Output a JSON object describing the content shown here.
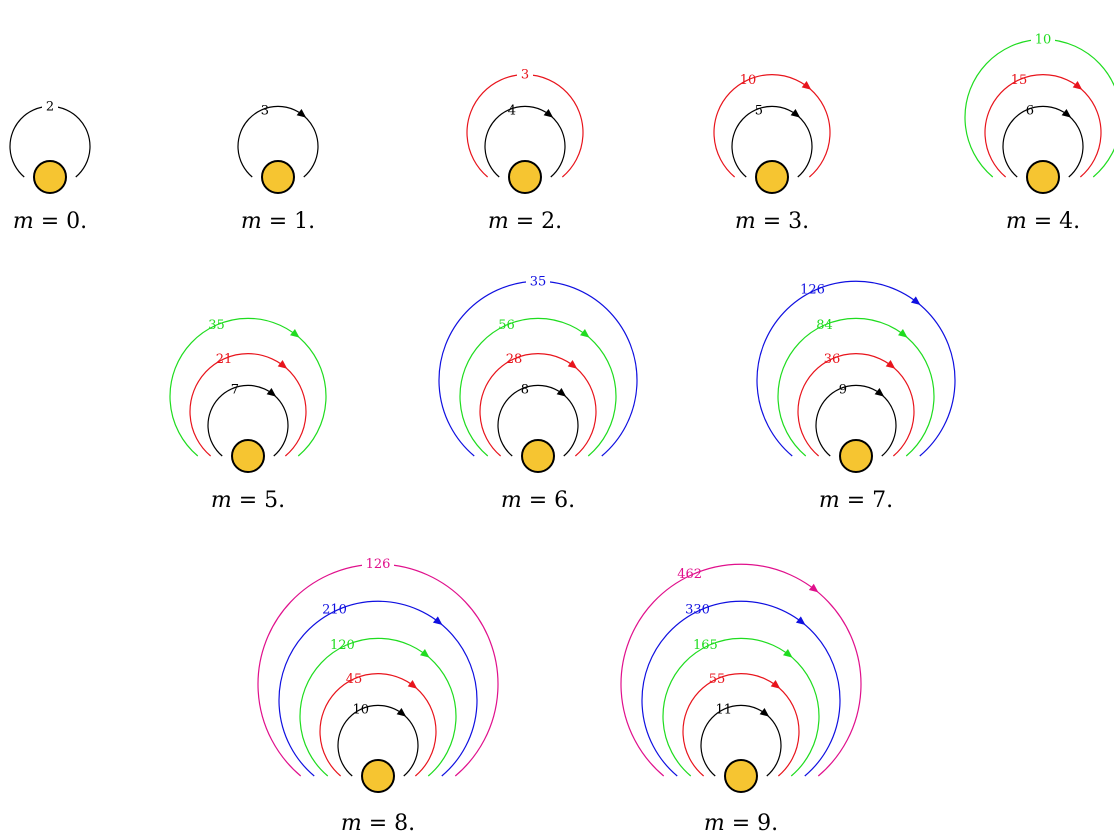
{
  "colors": {
    "black": "#000000",
    "red": "#e8141c",
    "green": "#1fdc1f",
    "blue": "#1010e0",
    "magenta": "#e0108c",
    "vertex": "#f6c531"
  },
  "caption_var": "m",
  "caption_eq": " = ",
  "diagrams": [
    {
      "m": "0",
      "loops": [
        {
          "label": "2",
          "color": "black",
          "arrow": false
        }
      ]
    },
    {
      "m": "1",
      "loops": [
        {
          "label": "3",
          "color": "black",
          "arrow": true
        }
      ]
    },
    {
      "m": "2",
      "loops": [
        {
          "label": "4",
          "color": "black",
          "arrow": true
        },
        {
          "label": "3",
          "color": "red",
          "arrow": false
        }
      ]
    },
    {
      "m": "3",
      "loops": [
        {
          "label": "5",
          "color": "black",
          "arrow": true
        },
        {
          "label": "10",
          "color": "red",
          "arrow": true
        }
      ]
    },
    {
      "m": "4",
      "loops": [
        {
          "label": "6",
          "color": "black",
          "arrow": true
        },
        {
          "label": "15",
          "color": "red",
          "arrow": true
        },
        {
          "label": "10",
          "color": "green",
          "arrow": false
        }
      ]
    },
    {
      "m": "5",
      "loops": [
        {
          "label": "7",
          "color": "black",
          "arrow": true
        },
        {
          "label": "21",
          "color": "red",
          "arrow": true
        },
        {
          "label": "35",
          "color": "green",
          "arrow": true
        }
      ]
    },
    {
      "m": "6",
      "loops": [
        {
          "label": "8",
          "color": "black",
          "arrow": true
        },
        {
          "label": "28",
          "color": "red",
          "arrow": true
        },
        {
          "label": "56",
          "color": "green",
          "arrow": true
        },
        {
          "label": "35",
          "color": "blue",
          "arrow": false
        }
      ]
    },
    {
      "m": "7",
      "loops": [
        {
          "label": "9",
          "color": "black",
          "arrow": true
        },
        {
          "label": "36",
          "color": "red",
          "arrow": true
        },
        {
          "label": "84",
          "color": "green",
          "arrow": true
        },
        {
          "label": "126",
          "color": "blue",
          "arrow": true
        }
      ]
    },
    {
      "m": "8",
      "loops": [
        {
          "label": "10",
          "color": "black",
          "arrow": true
        },
        {
          "label": "45",
          "color": "red",
          "arrow": true
        },
        {
          "label": "120",
          "color": "green",
          "arrow": true
        },
        {
          "label": "210",
          "color": "blue",
          "arrow": true
        },
        {
          "label": "126",
          "color": "magenta",
          "arrow": false
        }
      ]
    },
    {
      "m": "9",
      "loops": [
        {
          "label": "11",
          "color": "black",
          "arrow": true
        },
        {
          "label": "55",
          "color": "red",
          "arrow": true
        },
        {
          "label": "165",
          "color": "green",
          "arrow": true
        },
        {
          "label": "330",
          "color": "blue",
          "arrow": true
        },
        {
          "label": "462",
          "color": "magenta",
          "arrow": true
        }
      ]
    }
  ]
}
